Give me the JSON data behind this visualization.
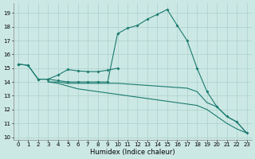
{
  "xlabel": "Humidex (Indice chaleur)",
  "bg_color": "#cce8e4",
  "grid_color": "#aad0cc",
  "line_color": "#1a7a6e",
  "xlim": [
    -0.5,
    23.5
  ],
  "ylim": [
    9.8,
    19.7
  ],
  "yticks": [
    10,
    11,
    12,
    13,
    14,
    15,
    16,
    17,
    18,
    19
  ],
  "xticks": [
    0,
    1,
    2,
    3,
    4,
    5,
    6,
    7,
    8,
    9,
    10,
    11,
    12,
    13,
    14,
    15,
    16,
    17,
    18,
    19,
    20,
    21,
    22,
    23
  ],
  "series": [
    {
      "x": [
        0,
        1,
        2,
        3,
        4,
        5,
        6,
        7,
        8,
        9,
        10
      ],
      "y": [
        15.3,
        15.2,
        14.2,
        14.2,
        14.5,
        14.9,
        14.8,
        14.75,
        14.75,
        14.85,
        15.0
      ],
      "marker": true
    },
    {
      "x": [
        0,
        1,
        2,
        3,
        4,
        5,
        6,
        7,
        8,
        9,
        10,
        11,
        12,
        13,
        14,
        15,
        16,
        17,
        18,
        19,
        20,
        21,
        22,
        23
      ],
      "y": [
        15.3,
        15.2,
        14.2,
        14.2,
        14.1,
        14.0,
        14.0,
        14.0,
        14.0,
        14.0,
        17.5,
        17.9,
        18.1,
        18.55,
        18.9,
        19.25,
        18.1,
        17.0,
        15.0,
        13.3,
        12.2,
        11.5,
        11.1,
        10.3
      ],
      "marker": true
    },
    {
      "x": [
        3,
        4,
        5,
        6,
        7,
        8,
        9,
        10,
        11,
        12,
        13,
        14,
        15,
        16,
        17,
        18,
        19,
        20,
        21,
        22,
        23
      ],
      "y": [
        14.0,
        14.0,
        13.9,
        13.9,
        13.9,
        13.9,
        13.9,
        13.9,
        13.85,
        13.8,
        13.75,
        13.7,
        13.65,
        13.6,
        13.55,
        13.3,
        12.5,
        12.2,
        11.5,
        11.1,
        10.3
      ],
      "marker": false
    },
    {
      "x": [
        3,
        4,
        5,
        6,
        7,
        8,
        9,
        10,
        11,
        12,
        13,
        14,
        15,
        16,
        17,
        18,
        19,
        20,
        21,
        22,
        23
      ],
      "y": [
        14.0,
        13.9,
        13.7,
        13.5,
        13.4,
        13.3,
        13.2,
        13.1,
        13.0,
        12.9,
        12.8,
        12.7,
        12.6,
        12.5,
        12.4,
        12.3,
        12.0,
        11.5,
        11.0,
        10.6,
        10.3
      ],
      "marker": false
    }
  ]
}
